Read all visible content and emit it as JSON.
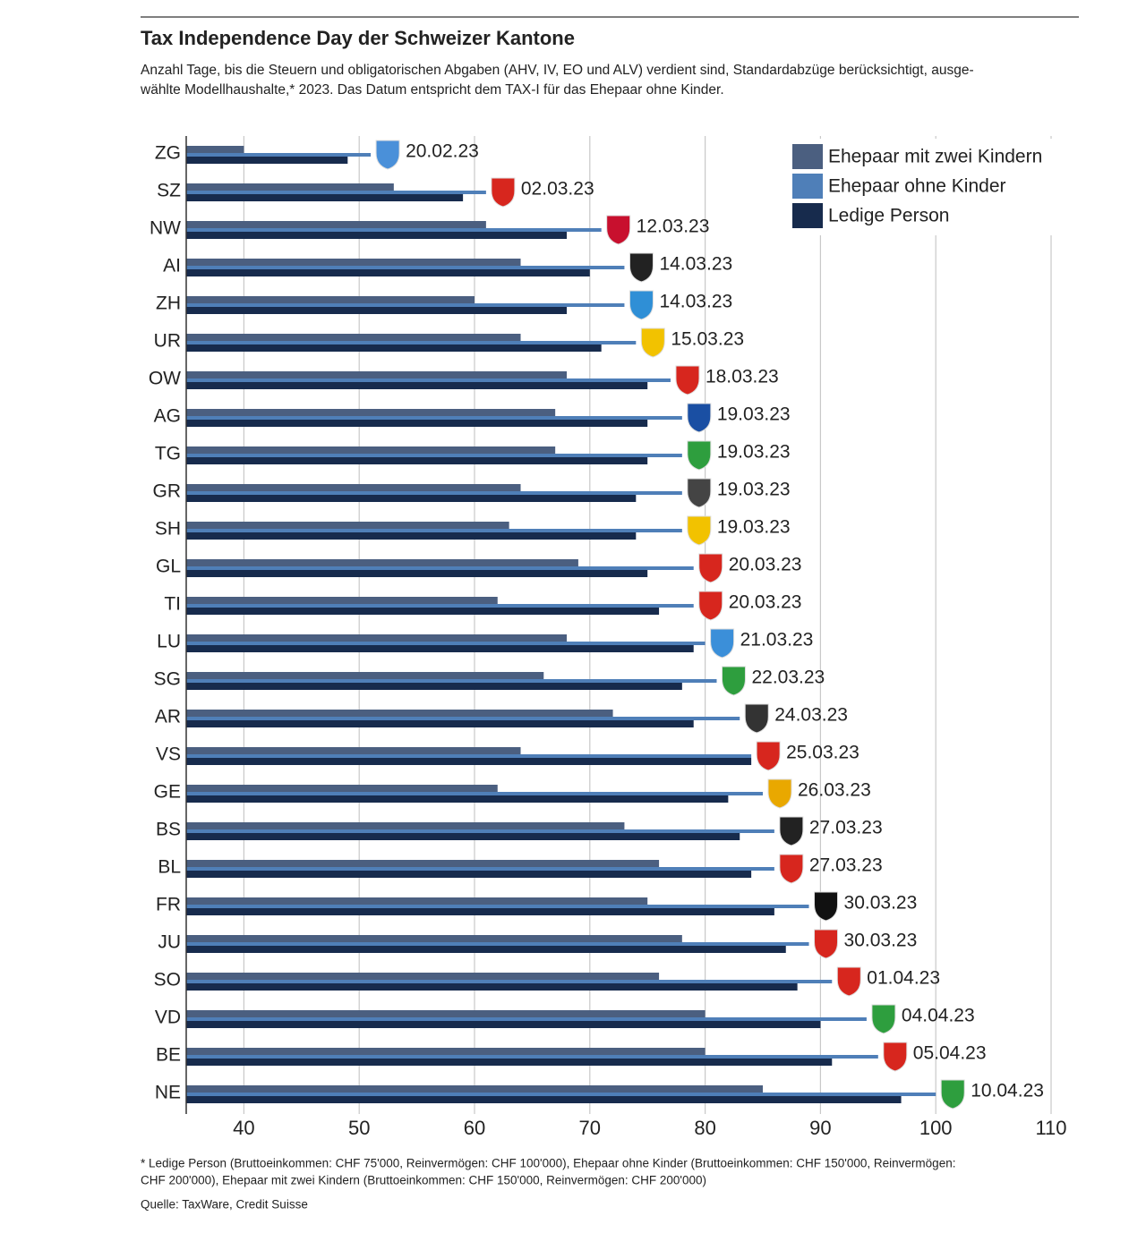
{
  "chart_data": {
    "type": "bar",
    "orientation": "horizontal",
    "title": "Tax Independence Day der Schweizer Kantone",
    "subtitle": [
      "Anzahl Tage, bis die Steuern und obligatorischen Abgaben (AHV, IV, EO und ALV) verdient sind, Standardabzüge berücksichtigt, ausge-",
      "wählte Modellhaushalte,* 2023. Das Datum entspricht dem TAX-I für das Ehepaar ohne Kinder."
    ],
    "categories": [
      "ZG",
      "SZ",
      "NW",
      "AI",
      "ZH",
      "UR",
      "OW",
      "AG",
      "TG",
      "GR",
      "SH",
      "GL",
      "TI",
      "LU",
      "SG",
      "AR",
      "VS",
      "GE",
      "BS",
      "BL",
      "FR",
      "JU",
      "SO",
      "VD",
      "BE",
      "NE"
    ],
    "series": [
      {
        "name": "Ehepaar mit zwei Kindern",
        "color": "#4b5f80",
        "values": [
          40,
          53,
          61,
          64,
          60,
          64,
          68,
          67,
          67,
          64,
          63,
          69,
          62,
          68,
          66,
          72,
          64,
          62,
          73,
          76,
          75,
          78,
          76,
          80,
          80,
          85
        ]
      },
      {
        "name": "Ehepaar ohne Kinder",
        "color": "#4f7fb8",
        "values": [
          51,
          61,
          71,
          73,
          73,
          74,
          77,
          78,
          78,
          78,
          78,
          79,
          79,
          80,
          81,
          83,
          84,
          85,
          86,
          86,
          89,
          89,
          91,
          94,
          95,
          100
        ],
        "value_labels": [
          "20.02.23",
          "02.03.23",
          "12.03.23",
          "14.03.23",
          "14.03.23",
          "15.03.23",
          "18.03.23",
          "19.03.23",
          "19.03.23",
          "19.03.23",
          "19.03.23",
          "20.03.23",
          "20.03.23",
          "21.03.23",
          "22.03.23",
          "24.03.23",
          "25.03.23",
          "26.03.23",
          "27.03.23",
          "27.03.23",
          "30.03.23",
          "30.03.23",
          "01.04.23",
          "04.04.23",
          "05.04.23",
          "10.04.23"
        ]
      },
      {
        "name": "Ledige Person",
        "color": "#172b4d",
        "values": [
          49,
          59,
          68,
          70,
          68,
          71,
          75,
          75,
          75,
          74,
          74,
          75,
          76,
          79,
          78,
          79,
          84,
          82,
          83,
          84,
          86,
          87,
          88,
          90,
          91,
          97
        ]
      }
    ],
    "xlim": [
      35,
      110
    ],
    "xticks": [
      40,
      50,
      60,
      70,
      80,
      90,
      100,
      110
    ],
    "grid": true,
    "legend": "top-right",
    "footnote": [
      "* Ledige Person (Bruttoeinkommen: CHF 75'000, Reinvermögen: CHF 100'000), Ehepaar ohne Kinder (Bruttoeinkommen: CHF 150'000, Reinvermögen:",
      "CHF 200'000), Ehepaar mit zwei Kindern (Bruttoeinkommen: CHF 150'000, Reinvermögen: CHF 200'000)"
    ],
    "source": "Quelle: TaxWare, Credit Suisse"
  }
}
